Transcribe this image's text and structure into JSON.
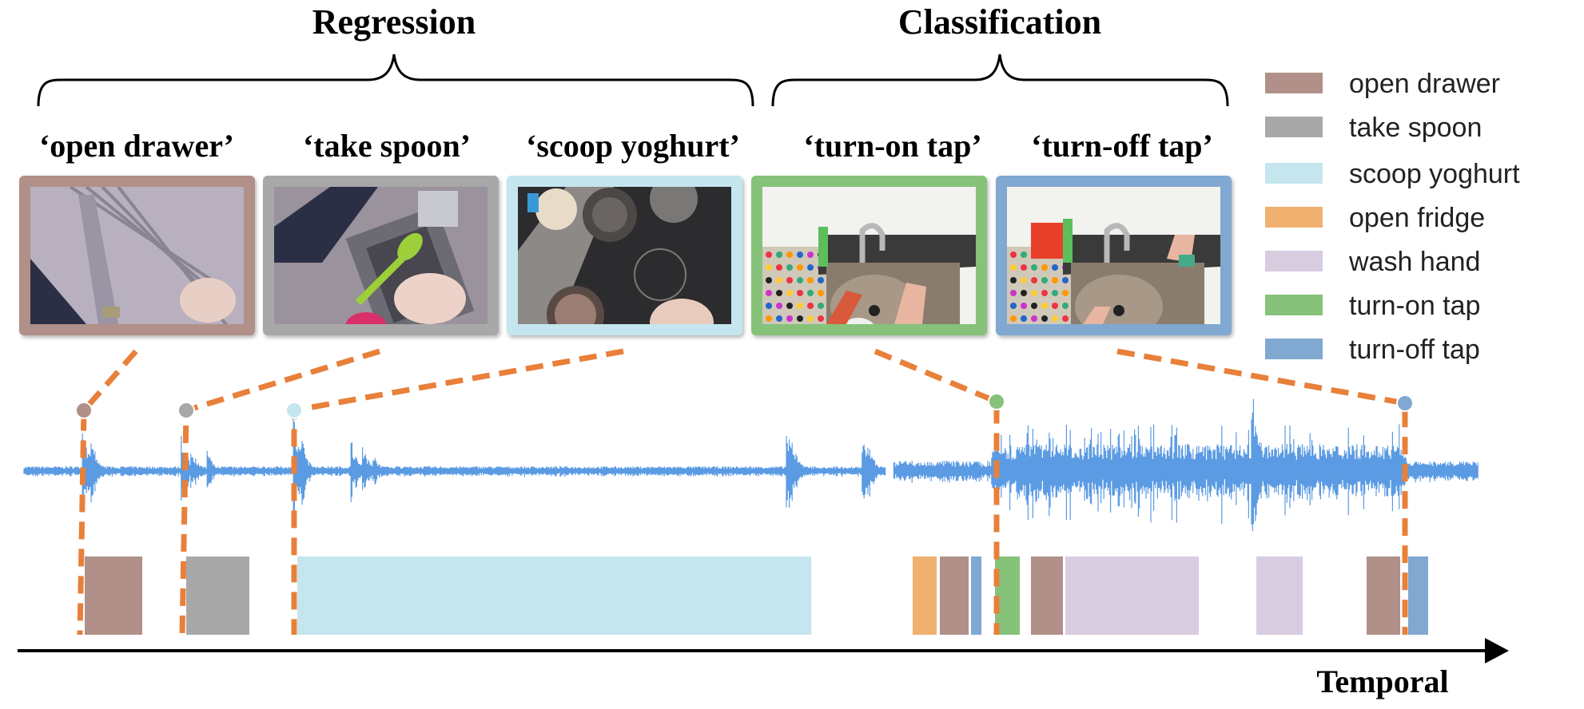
{
  "groups": {
    "regression": "Regression",
    "classification": "Classification"
  },
  "frames": [
    {
      "caption": "‘open drawer’",
      "scene": "drawer",
      "border": "#b09088"
    },
    {
      "caption": "‘take spoon’",
      "scene": "spoon",
      "border": "#a8a8a8"
    },
    {
      "caption": "‘scoop yoghurt’",
      "scene": "yoghurt",
      "border": "#c5e6ee"
    },
    {
      "caption": "‘turn-on tap’",
      "scene": "tap-on",
      "border": "#86c27a"
    },
    {
      "caption": "‘turn-off tap’",
      "scene": "tap-off",
      "border": "#80a8d0"
    }
  ],
  "legend": [
    {
      "label": "open drawer",
      "color": "#b09088"
    },
    {
      "label": "take spoon",
      "color": "#a8a8a8"
    },
    {
      "label": "scoop yoghurt",
      "color": "#c5e6ee"
    },
    {
      "label": "open fridge",
      "color": "#f0b070"
    },
    {
      "label": "wash hand",
      "color": "#d8cce0"
    },
    {
      "label": "turn-on tap",
      "color": "#86c27a"
    },
    {
      "label": "turn-off tap",
      "color": "#80a8d0"
    }
  ],
  "segments": [
    {
      "action": "open drawer"
    },
    {
      "action": "take spoon"
    },
    {
      "action": "scoop yoghurt"
    },
    {
      "action": "open fridge"
    },
    {
      "action": "open drawer"
    },
    {
      "action": "turn-off tap"
    },
    {
      "action": "turn-on tap"
    },
    {
      "action": "open drawer"
    },
    {
      "action": "wash hand"
    },
    {
      "action": "wash hand"
    },
    {
      "action": "open drawer"
    },
    {
      "action": "turn-off tap"
    }
  ],
  "axis": {
    "label": "Temporal"
  },
  "colors": {
    "waveform": "#5b9be3",
    "connector": "#e8803a",
    "axis": "#000000"
  }
}
